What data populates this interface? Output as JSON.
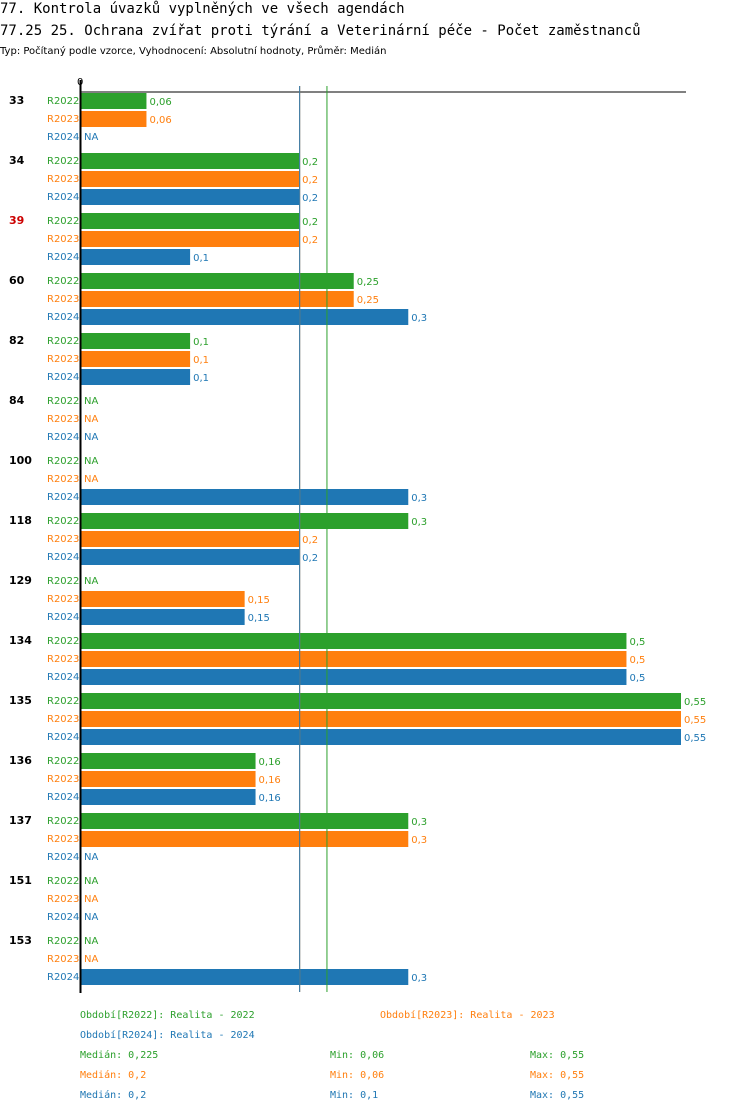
{
  "chart_data": {
    "type": "bar",
    "orientation": "horizontal",
    "title": "77. Kontrola úvazků vyplněných ve všech agendách",
    "subtitle": "77.25 25. Ochrana zvířat proti týrání a Veterinární péče - Počet zaměstnanců",
    "caption": "Typ: Počítaný podle vzorce, Vyhodnocení: Absolutní hodnoty, Průměr: Medián",
    "axis_zero_label": "0",
    "xlim": [
      0,
      0.55
    ],
    "categories": [
      "33",
      "34",
      "39",
      "60",
      "82",
      "84",
      "100",
      "118",
      "129",
      "134",
      "135",
      "136",
      "137",
      "151",
      "153"
    ],
    "highlight_category": "39",
    "na_label": "NA",
    "series": [
      {
        "name": "R2022",
        "color": "#2ca02c",
        "values": [
          0.06,
          0.2,
          0.2,
          0.25,
          0.1,
          null,
          null,
          0.3,
          null,
          0.5,
          0.55,
          0.16,
          0.3,
          null,
          null
        ],
        "labels": [
          "0,06",
          "0,2",
          "0,2",
          "0,25",
          "0,1",
          "NA",
          "NA",
          "0,3",
          "NA",
          "0,5",
          "0,55",
          "0,16",
          "0,3",
          "NA",
          "NA"
        ]
      },
      {
        "name": "R2023",
        "color": "#ff7f0e",
        "values": [
          0.06,
          0.2,
          0.2,
          0.25,
          0.1,
          null,
          null,
          0.2,
          0.15,
          0.5,
          0.55,
          0.16,
          0.3,
          null,
          null
        ],
        "labels": [
          "0,06",
          "0,2",
          "0,2",
          "0,25",
          "0,1",
          "NA",
          "NA",
          "0,2",
          "0,15",
          "0,5",
          "0,55",
          "0,16",
          "0,3",
          "NA",
          "NA"
        ]
      },
      {
        "name": "R2024",
        "color": "#1f77b4",
        "values": [
          null,
          0.2,
          0.1,
          0.3,
          0.1,
          null,
          0.3,
          0.2,
          0.15,
          0.5,
          0.55,
          0.16,
          null,
          null,
          0.3
        ],
        "labels": [
          "NA",
          "0,2",
          "0,1",
          "0,3",
          "0,1",
          "NA",
          "0,3",
          "0,2",
          "0,15",
          "0,5",
          "0,55",
          "0,16",
          "NA",
          "NA",
          "0,3"
        ]
      }
    ],
    "reference_lines": [
      {
        "series": "R2022",
        "value": 0.225
      },
      {
        "series": "R2023",
        "value": 0.2
      },
      {
        "series": "R2024",
        "value": 0.2
      }
    ],
    "legend": [
      {
        "text": "Období[R2022]: Realita - 2022",
        "color": "#2ca02c"
      },
      {
        "text": "Období[R2023]: Realita - 2023",
        "color": "#ff7f0e"
      },
      {
        "text": "Období[R2024]: Realita - 2024",
        "color": "#1f77b4"
      }
    ],
    "stats": [
      {
        "series": "R2022",
        "color": "#2ca02c",
        "median": "Medián: 0,225",
        "min": "Min: 0,06",
        "max": "Max: 0,55"
      },
      {
        "series": "R2023",
        "color": "#ff7f0e",
        "median": "Medián: 0,2",
        "min": "Min: 0,06",
        "max": "Max: 0,55"
      },
      {
        "series": "R2024",
        "color": "#1f77b4",
        "median": "Medián: 0,2",
        "min": "Min: 0,1",
        "max": "Max: 0,55"
      }
    ]
  }
}
